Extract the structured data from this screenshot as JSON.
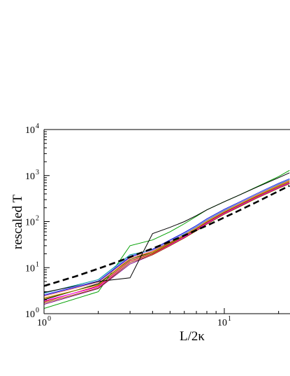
{
  "chart_data": {
    "type": "line",
    "title": "",
    "xlabel": "L/2κ",
    "ylabel": "rescaled T",
    "xscale": "log",
    "yscale": "log",
    "xlim": [
      1,
      23
    ],
    "ylim": [
      1,
      10000
    ],
    "grid": false,
    "x_ticks": [
      {
        "base": "10",
        "exp": "0"
      },
      {
        "base": "10",
        "exp": "1"
      }
    ],
    "y_ticks": [
      {
        "base": "10",
        "exp": "0"
      },
      {
        "base": "10",
        "exp": "1"
      },
      {
        "base": "10",
        "exp": "2"
      },
      {
        "base": "10",
        "exp": "3"
      },
      {
        "base": "10",
        "exp": "4"
      }
    ],
    "x": [
      1,
      2,
      3,
      4,
      5,
      6,
      7,
      8,
      10,
      12,
      15,
      20,
      23
    ],
    "series": [
      {
        "color": "#000000",
        "values": [
          2.0,
          4.5,
          15,
          22,
          35,
          52,
          75,
          105,
          170,
          240,
          370,
          620,
          780
        ]
      },
      {
        "color": "#d00000",
        "values": [
          1.8,
          4.0,
          14,
          20,
          32,
          48,
          68,
          95,
          155,
          220,
          340,
          560,
          700
        ]
      },
      {
        "color": "#00a000",
        "values": [
          1.3,
          3.0,
          30,
          40,
          60,
          90,
          130,
          180,
          270,
          370,
          560,
          950,
          1300
        ]
      },
      {
        "color": "#0000d0",
        "values": [
          2.5,
          5.0,
          17,
          25,
          40,
          58,
          82,
          115,
          185,
          260,
          400,
          680,
          850
        ]
      },
      {
        "color": "#e08000",
        "values": [
          2.2,
          4.2,
          16,
          22,
          34,
          50,
          72,
          100,
          165,
          235,
          360,
          600,
          760
        ]
      },
      {
        "color": "#800080",
        "values": [
          1.6,
          3.5,
          12,
          19,
          30,
          45,
          65,
          90,
          148,
          210,
          325,
          540,
          680
        ]
      },
      {
        "color": "#00a0a0",
        "values": [
          2.8,
          5.5,
          19,
          24,
          36,
          53,
          76,
          106,
          172,
          245,
          380,
          640,
          820
        ]
      },
      {
        "color": "#ff00ff",
        "values": [
          1.9,
          3.8,
          13,
          19,
          31,
          46,
          66,
          92,
          150,
          215,
          330,
          550,
          690
        ]
      },
      {
        "color": "#808000",
        "values": [
          2.1,
          4.3,
          15,
          21,
          33,
          49,
          70,
          98,
          160,
          228,
          350,
          580,
          730
        ]
      },
      {
        "color": "#ff8080",
        "values": [
          2.4,
          4.8,
          16,
          23,
          36,
          52,
          74,
          104,
          168,
          240,
          372,
          625,
          790
        ]
      },
      {
        "color": "#000000",
        "values": [
          2.9,
          5.0,
          6.0,
          55,
          75,
          100,
          135,
          180,
          270,
          370,
          550,
          900,
          1150
        ]
      },
      {
        "color": "#8080ff",
        "values": [
          2.6,
          5.2,
          18,
          24,
          38,
          56,
          80,
          112,
          180,
          255,
          395,
          665,
          840
        ]
      },
      {
        "color": "#a05000",
        "values": [
          1.7,
          3.6,
          13,
          19,
          30,
          44,
          63,
          88,
          145,
          205,
          318,
          530,
          665
        ]
      }
    ],
    "fit": {
      "style": "dashed",
      "color": "#000000",
      "x": [
        1,
        1.5,
        2,
        2.5,
        3,
        3.5,
        4,
        5,
        6,
        8,
        10,
        12,
        15,
        20,
        23
      ],
      "values": [
        4.0,
        6.5,
        9.5,
        13,
        17,
        21.5,
        26,
        37,
        50,
        82,
        123,
        172,
        262,
        460,
        600
      ]
    }
  }
}
